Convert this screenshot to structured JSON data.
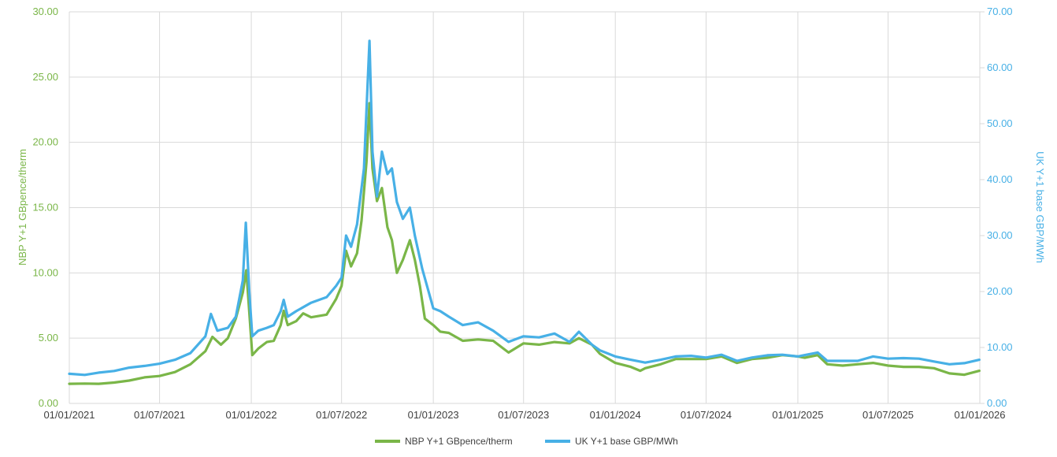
{
  "chart_data": {
    "type": "line",
    "colors": {
      "nbp": "#7ab648",
      "power": "#47b0e6",
      "grid": "#d9d9d9",
      "xtick": "#404040"
    },
    "x_axis": {
      "ticks": [
        "01/01/2021",
        "01/07/2021",
        "01/01/2022",
        "01/07/2022",
        "01/01/2023",
        "01/07/2023",
        "01/01/2024",
        "01/07/2024",
        "01/01/2025",
        "01/07/2025",
        "01/01/2026"
      ],
      "range": [
        "01/01/2021",
        "01/01/2026"
      ]
    },
    "y_left": {
      "label": "NBP Y+1 GBpence/therm",
      "range": [
        0,
        30
      ],
      "ticks": [
        "0.00",
        "5.00",
        "10.00",
        "15.00",
        "20.00",
        "25.00",
        "30.00"
      ]
    },
    "y_right": {
      "label": "UK Y+1 base GBP/MWh",
      "range": [
        0,
        70
      ],
      "ticks": [
        "0.00",
        "10.00",
        "20.00",
        "30.00",
        "40.00",
        "50.00",
        "60.00",
        "70.00"
      ]
    },
    "series": [
      {
        "name": "NBP Y+1 GBpence/therm",
        "axis": "left",
        "points": [
          [
            "2021-01-01",
            1.5
          ],
          [
            "2021-02-01",
            1.52
          ],
          [
            "2021-03-01",
            1.5
          ],
          [
            "2021-04-01",
            1.6
          ],
          [
            "2021-05-01",
            1.75
          ],
          [
            "2021-06-01",
            2.0
          ],
          [
            "2021-07-01",
            2.1
          ],
          [
            "2021-08-01",
            2.4
          ],
          [
            "2021-09-01",
            3.0
          ],
          [
            "2021-10-01",
            4.0
          ],
          [
            "2021-10-15",
            5.1
          ],
          [
            "2021-11-01",
            4.5
          ],
          [
            "2021-11-15",
            5.0
          ],
          [
            "2021-12-01",
            6.5
          ],
          [
            "2021-12-15",
            8.5
          ],
          [
            "2021-12-22",
            10.2
          ],
          [
            "2021-12-28",
            7.0
          ],
          [
            "2022-01-03",
            3.7
          ],
          [
            "2022-01-15",
            4.2
          ],
          [
            "2022-02-01",
            4.7
          ],
          [
            "2022-02-15",
            4.8
          ],
          [
            "2022-03-01",
            6.0
          ],
          [
            "2022-03-07",
            7.1
          ],
          [
            "2022-03-15",
            6.0
          ],
          [
            "2022-04-01",
            6.3
          ],
          [
            "2022-04-15",
            6.9
          ],
          [
            "2022-05-01",
            6.6
          ],
          [
            "2022-06-01",
            6.8
          ],
          [
            "2022-06-20",
            8.0
          ],
          [
            "2022-07-01",
            9.0
          ],
          [
            "2022-07-10",
            11.7
          ],
          [
            "2022-07-20",
            10.5
          ],
          [
            "2022-08-01",
            11.5
          ],
          [
            "2022-08-10",
            14.0
          ],
          [
            "2022-08-20",
            18.5
          ],
          [
            "2022-08-26",
            23.0
          ],
          [
            "2022-09-01",
            18.0
          ],
          [
            "2022-09-10",
            15.5
          ],
          [
            "2022-09-20",
            16.5
          ],
          [
            "2022-10-01",
            13.5
          ],
          [
            "2022-10-10",
            12.5
          ],
          [
            "2022-10-20",
            10.0
          ],
          [
            "2022-11-01",
            11.0
          ],
          [
            "2022-11-15",
            12.5
          ],
          [
            "2022-11-25",
            11.0
          ],
          [
            "2022-12-05",
            9.0
          ],
          [
            "2022-12-15",
            6.5
          ],
          [
            "2023-01-01",
            6.0
          ],
          [
            "2023-01-15",
            5.5
          ],
          [
            "2023-02-01",
            5.4
          ],
          [
            "2023-03-01",
            4.8
          ],
          [
            "2023-04-01",
            4.9
          ],
          [
            "2023-05-01",
            4.8
          ],
          [
            "2023-06-01",
            3.9
          ],
          [
            "2023-07-01",
            4.6
          ],
          [
            "2023-08-01",
            4.5
          ],
          [
            "2023-09-01",
            4.7
          ],
          [
            "2023-10-01",
            4.6
          ],
          [
            "2023-10-20",
            5.0
          ],
          [
            "2023-11-15",
            4.5
          ],
          [
            "2023-12-01",
            3.8
          ],
          [
            "2024-01-01",
            3.1
          ],
          [
            "2024-02-01",
            2.8
          ],
          [
            "2024-02-20",
            2.5
          ],
          [
            "2024-03-01",
            2.7
          ],
          [
            "2024-04-01",
            3.0
          ],
          [
            "2024-05-01",
            3.4
          ],
          [
            "2024-06-01",
            3.4
          ],
          [
            "2024-07-01",
            3.4
          ],
          [
            "2024-08-01",
            3.6
          ],
          [
            "2024-09-01",
            3.1
          ],
          [
            "2024-10-01",
            3.4
          ],
          [
            "2024-11-01",
            3.5
          ],
          [
            "2024-12-01",
            3.7
          ],
          [
            "2025-01-01",
            3.6
          ],
          [
            "2025-01-15",
            3.5
          ],
          [
            "2025-02-10",
            3.7
          ],
          [
            "2025-03-01",
            3.0
          ],
          [
            "2025-04-01",
            2.9
          ],
          [
            "2025-05-01",
            3.0
          ],
          [
            "2025-06-01",
            3.1
          ],
          [
            "2025-07-01",
            2.9
          ],
          [
            "2025-08-01",
            2.8
          ],
          [
            "2025-09-01",
            2.8
          ],
          [
            "2025-10-01",
            2.7
          ],
          [
            "2025-11-01",
            2.3
          ],
          [
            "2025-12-01",
            2.2
          ],
          [
            "2025-12-31",
            2.5
          ]
        ]
      },
      {
        "name": "UK Y+1 base GBP/MWh",
        "axis": "right",
        "points": [
          [
            "2021-01-01",
            5.3
          ],
          [
            "2021-02-01",
            5.1
          ],
          [
            "2021-03-01",
            5.5
          ],
          [
            "2021-04-01",
            5.8
          ],
          [
            "2021-05-01",
            6.4
          ],
          [
            "2021-06-01",
            6.7
          ],
          [
            "2021-07-01",
            7.1
          ],
          [
            "2021-08-01",
            7.8
          ],
          [
            "2021-09-01",
            9.0
          ],
          [
            "2021-10-01",
            12.0
          ],
          [
            "2021-10-12",
            16.0
          ],
          [
            "2021-10-25",
            13.0
          ],
          [
            "2021-11-15",
            13.5
          ],
          [
            "2021-12-01",
            15.5
          ],
          [
            "2021-12-15",
            22.0
          ],
          [
            "2021-12-21",
            32.3
          ],
          [
            "2021-12-28",
            20.0
          ],
          [
            "2022-01-03",
            12.0
          ],
          [
            "2022-01-15",
            13.0
          ],
          [
            "2022-02-01",
            13.5
          ],
          [
            "2022-02-15",
            14.0
          ],
          [
            "2022-03-01",
            16.5
          ],
          [
            "2022-03-07",
            18.5
          ],
          [
            "2022-03-15",
            15.5
          ],
          [
            "2022-04-01",
            16.5
          ],
          [
            "2022-05-01",
            18.0
          ],
          [
            "2022-06-01",
            19.0
          ],
          [
            "2022-06-20",
            21.0
          ],
          [
            "2022-07-01",
            22.5
          ],
          [
            "2022-07-10",
            30.0
          ],
          [
            "2022-07-20",
            28.0
          ],
          [
            "2022-08-01",
            32.0
          ],
          [
            "2022-08-15",
            42.0
          ],
          [
            "2022-08-26",
            64.8
          ],
          [
            "2022-09-01",
            45.0
          ],
          [
            "2022-09-10",
            37.0
          ],
          [
            "2022-09-20",
            45.0
          ],
          [
            "2022-10-01",
            41.0
          ],
          [
            "2022-10-10",
            42.0
          ],
          [
            "2022-10-20",
            36.0
          ],
          [
            "2022-11-01",
            33.0
          ],
          [
            "2022-11-15",
            35.0
          ],
          [
            "2022-11-25",
            30.0
          ],
          [
            "2022-12-10",
            24.0
          ],
          [
            "2023-01-01",
            17.0
          ],
          [
            "2023-01-15",
            16.5
          ],
          [
            "2023-02-01",
            15.5
          ],
          [
            "2023-03-01",
            14.0
          ],
          [
            "2023-04-01",
            14.5
          ],
          [
            "2023-05-01",
            13.0
          ],
          [
            "2023-06-01",
            11.0
          ],
          [
            "2023-07-01",
            12.0
          ],
          [
            "2023-08-01",
            11.8
          ],
          [
            "2023-09-01",
            12.5
          ],
          [
            "2023-10-01",
            11.0
          ],
          [
            "2023-10-20",
            12.8
          ],
          [
            "2023-11-15",
            10.5
          ],
          [
            "2023-12-01",
            9.5
          ],
          [
            "2024-01-01",
            8.4
          ],
          [
            "2024-02-01",
            7.8
          ],
          [
            "2024-03-01",
            7.3
          ],
          [
            "2024-04-01",
            7.8
          ],
          [
            "2024-05-01",
            8.4
          ],
          [
            "2024-06-01",
            8.5
          ],
          [
            "2024-07-01",
            8.2
          ],
          [
            "2024-08-01",
            8.7
          ],
          [
            "2024-09-01",
            7.6
          ],
          [
            "2024-10-01",
            8.2
          ],
          [
            "2024-11-01",
            8.6
          ],
          [
            "2024-12-01",
            8.7
          ],
          [
            "2025-01-01",
            8.4
          ],
          [
            "2025-02-10",
            9.1
          ],
          [
            "2025-03-01",
            7.6
          ],
          [
            "2025-04-01",
            7.6
          ],
          [
            "2025-05-01",
            7.6
          ],
          [
            "2025-06-01",
            8.4
          ],
          [
            "2025-07-01",
            8.0
          ],
          [
            "2025-08-01",
            8.1
          ],
          [
            "2025-09-01",
            8.0
          ],
          [
            "2025-10-01",
            7.5
          ],
          [
            "2025-11-01",
            7.0
          ],
          [
            "2025-12-01",
            7.2
          ],
          [
            "2025-12-31",
            7.8
          ]
        ]
      }
    ],
    "legend_position": "bottom",
    "grid": true
  }
}
